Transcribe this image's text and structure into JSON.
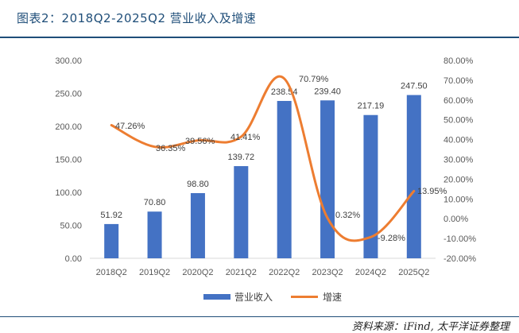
{
  "header": {
    "title": "图表2：2018Q2-2025Q2 营业收入及增速"
  },
  "footer": {
    "source": "资料来源：iFind, 太平洋证券整理"
  },
  "chart_data": {
    "type": "bar",
    "categories": [
      "2018Q2",
      "2019Q2",
      "2020Q2",
      "2021Q2",
      "2022Q2",
      "2023Q2",
      "2024Q2",
      "2025Q2"
    ],
    "series": [
      {
        "name": "营业收入",
        "type": "bar",
        "axis": "left",
        "color": "#4472c4",
        "values": [
          51.92,
          70.8,
          98.8,
          139.72,
          238.54,
          239.4,
          217.19,
          247.5
        ],
        "labels": [
          "51.92",
          "70.80",
          "98.80",
          "139.72",
          "238.54",
          "239.40",
          "217.19",
          "247.50"
        ]
      },
      {
        "name": "增速",
        "type": "line",
        "smooth": true,
        "axis": "right",
        "color": "#ed7d31",
        "values": [
          47.26,
          36.35,
          39.56,
          41.41,
          70.79,
          0.32,
          -9.28,
          13.95
        ],
        "labels": [
          "47.26%",
          "36.35%",
          "39.56%",
          "41.41%",
          "70.79%",
          "0.32%",
          "-9.28%",
          "13.95%"
        ]
      }
    ],
    "y_left": {
      "min": 0,
      "max": 300,
      "step": 50,
      "ticks": [
        "0.00",
        "50.00",
        "100.00",
        "150.00",
        "200.00",
        "250.00",
        "300.00"
      ]
    },
    "y_right": {
      "min": -20,
      "max": 80,
      "step": 10,
      "ticks": [
        "-20.00%",
        "-10.00%",
        "0.00%",
        "10.00%",
        "20.00%",
        "30.00%",
        "40.00%",
        "50.00%",
        "60.00%",
        "70.00%",
        "80.00%"
      ]
    },
    "grid": false,
    "legend_position": "bottom"
  }
}
